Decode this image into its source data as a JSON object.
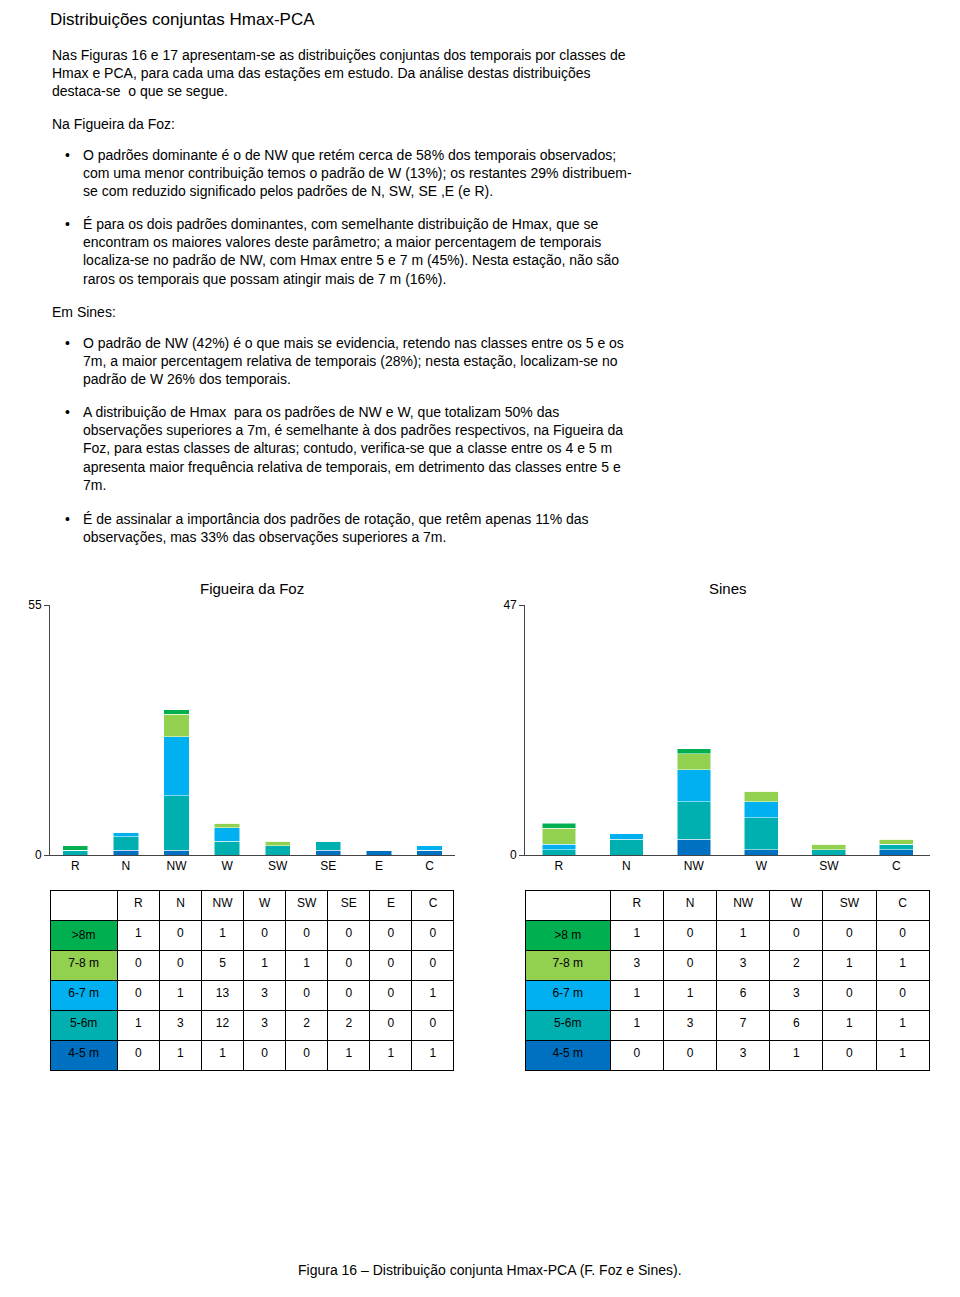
{
  "title": "Distribuições conjuntas Hmax-PCA",
  "annotations": [
    "Nas Figuras 16 e 17 apresentam-se as distribuições conjuntas dos temporais por classes de\nHmax e PCA, para cada uma das estações em estudo. Da análise destas distribuições\ndestaca-se  o que se segue.",
    "Na Figueira da Foz:",
    [
      "•",
      "O padrões dominante é o de NW que retém cerca de 58% dos temporais observados;\ncom uma menor contribuição temos o padrão de W (13%); os restantes 29% distribuem-\nse com reduzido significado pelos padrões de N, SW, SE ,E (e R)."
    ],
    [
      "•",
      "É para os dois padrões dominantes, com semelhante distribuição de Hmax, que se\nencontram os maiores valores deste parâmetro; a maior percentagem de temporais\nlocaliza-se no padrão de NW, com Hmax entre 5 e 7 m (45%). Nesta estação, não são\nraros os temporais que possam atingir mais de 7 m (16%)."
    ],
    "Em Sines:",
    [
      "•",
      "O padrão de NW (42%) é o que mais se evidencia, retendo nas classes entre os 5 e os\n7m, a maior percentagem relativa de temporais (28%); nesta estação, localizam-se no\npadrão de W 26% dos temporais."
    ],
    [
      "•",
      "A distribuição de Hmax  para os padrões de NW e W, que totalizam 50% das\nobservações superiores a 7m, é semelhante à dos padrões respectivos, na Figueira da\nFoz, para estas classes de alturas; contudo, verifica-se que a classe entre os 4 e 5 m\napresenta maior frequência relativa de temporais, em detrimento das classes entre 5 e\n7m."
    ],
    [
      "•",
      "É de assinalar a importância dos padrões de rotação, que retêm apenas 11% das\nobservações, mas 33% das observações superiores a 7m."
    ]
  ],
  "caption": "Figura 16 – Distribuição conjunta Hmax-PCA (F. Foz e Sines).",
  "chart_data": [
    {
      "type": "bar",
      "title": "Figueira da Foz",
      "stacked": true,
      "grid": false,
      "categories": [
        "R",
        "N",
        "NW",
        "W",
        "SW",
        "SE",
        "E",
        "C"
      ],
      "ylim": [
        0,
        55
      ],
      "yticks": [
        0,
        55
      ],
      "series": [
        {
          "name": ">8m",
          "color": "#00b050",
          "values": [
            1,
            0,
            1,
            0,
            0,
            0,
            0,
            0
          ]
        },
        {
          "name": "7-8 m",
          "color": "#92d050",
          "values": [
            0,
            0,
            5,
            1,
            1,
            0,
            0,
            0
          ]
        },
        {
          "name": "6-7 m",
          "color": "#00b0f0",
          "values": [
            0,
            1,
            13,
            3,
            0,
            0,
            0,
            1
          ]
        },
        {
          "name": "5-6m",
          "color": "#00b0b0",
          "values": [
            1,
            3,
            12,
            3,
            2,
            2,
            0,
            0
          ]
        },
        {
          "name": "4-5 m",
          "color": "#0070c0",
          "values": [
            0,
            1,
            1,
            0,
            0,
            1,
            1,
            1
          ]
        }
      ]
    },
    {
      "type": "bar",
      "title": "Sines",
      "stacked": true,
      "grid": false,
      "categories": [
        "R",
        "N",
        "NW",
        "W",
        "SW",
        "C"
      ],
      "ylim": [
        0,
        47
      ],
      "yticks": [
        0,
        47
      ],
      "series": [
        {
          "name": ">8 m",
          "color": "#00b050",
          "values": [
            1,
            0,
            1,
            0,
            0,
            0
          ]
        },
        {
          "name": "7-8 m",
          "color": "#92d050",
          "values": [
            3,
            0,
            3,
            2,
            1,
            1
          ]
        },
        {
          "name": "6-7 m",
          "color": "#00b0f0",
          "values": [
            1,
            1,
            6,
            3,
            0,
            0
          ]
        },
        {
          "name": "5-6m",
          "color": "#00b0b0",
          "values": [
            1,
            3,
            7,
            6,
            1,
            1
          ]
        },
        {
          "name": "4-5 m",
          "color": "#0070c0",
          "values": [
            0,
            0,
            3,
            1,
            0,
            1
          ]
        }
      ]
    }
  ]
}
